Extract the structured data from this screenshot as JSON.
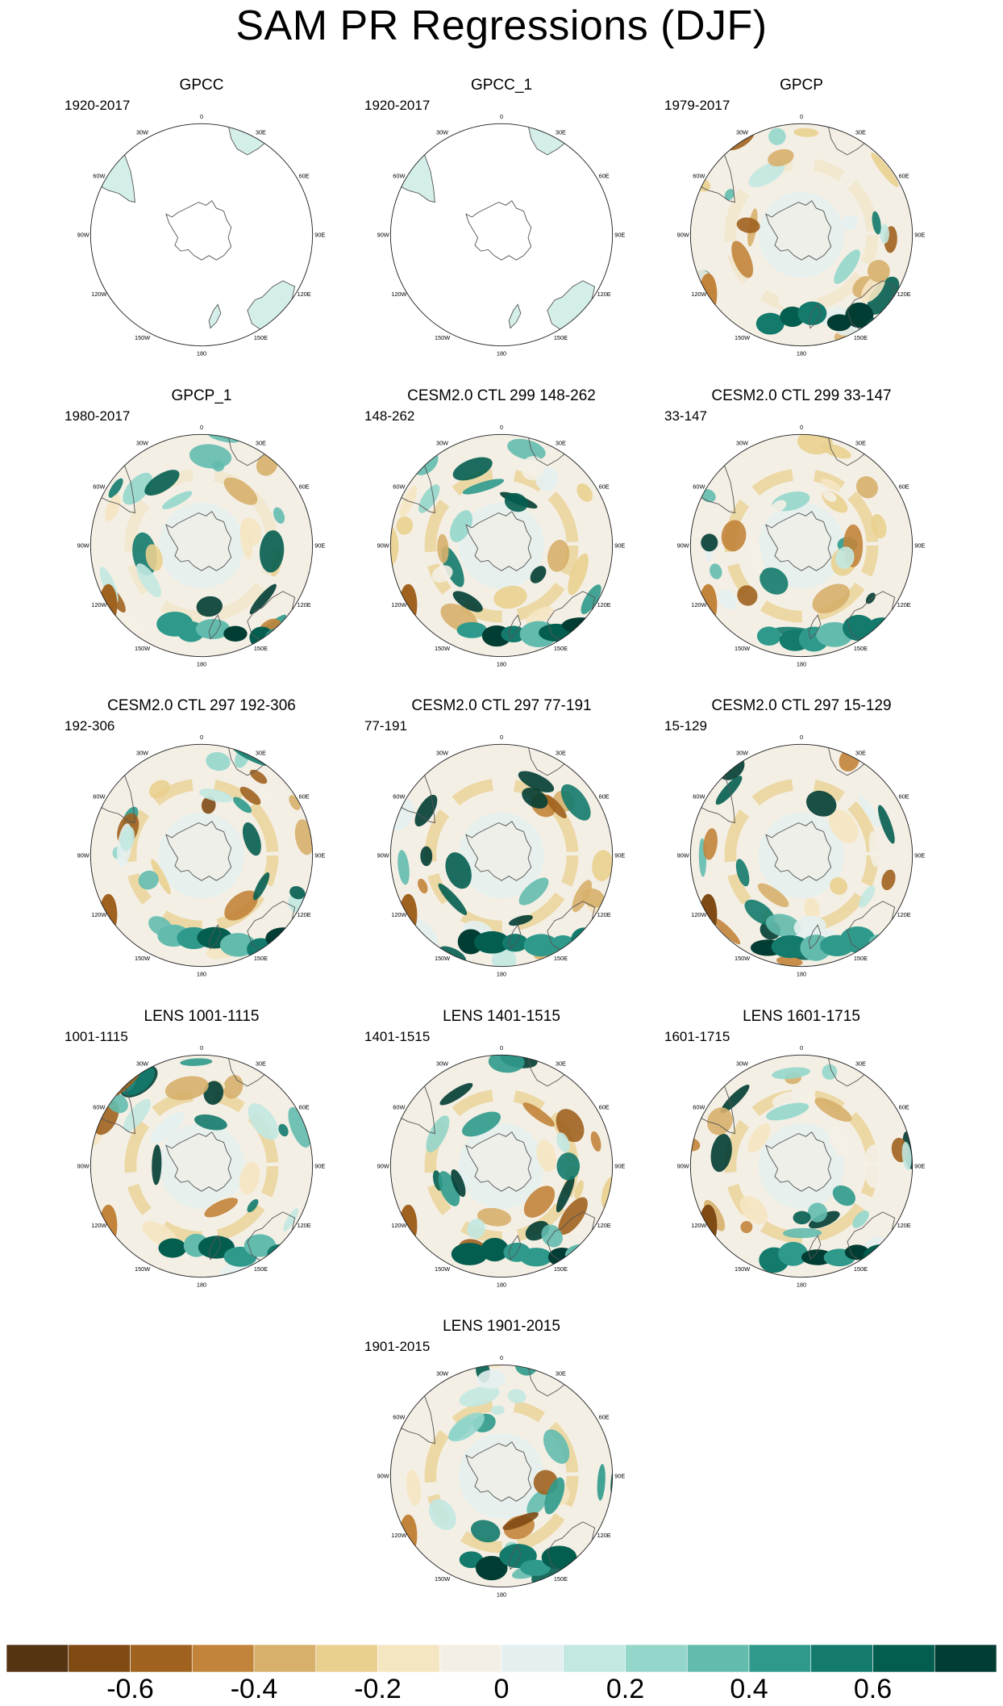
{
  "title": "SAM PR Regressions (DJF)",
  "longitude_labels": [
    "0",
    "30E",
    "60E",
    "90E",
    "120E",
    "150E",
    "180",
    "150W",
    "120W",
    "90W",
    "60W",
    "30W"
  ],
  "panels": [
    {
      "title": "GPCC",
      "period": "1920-2017",
      "land_only": true
    },
    {
      "title": "GPCC_1",
      "period": "1920-2017",
      "land_only": true
    },
    {
      "title": "GPCP",
      "period": "1979-2017",
      "land_only": false
    },
    {
      "title": "GPCP_1",
      "period": "1980-2017",
      "land_only": false
    },
    {
      "title": "CESM2.0 CTL 299 148-262",
      "period": "148-262",
      "land_only": false
    },
    {
      "title": "CESM2.0 CTL 299 33-147",
      "period": "33-147",
      "land_only": false
    },
    {
      "title": "CESM2.0 CTL 297 192-306",
      "period": "192-306",
      "land_only": false
    },
    {
      "title": "CESM2.0 CTL 297 77-191",
      "period": "77-191",
      "land_only": false
    },
    {
      "title": "CESM2.0 CTL 297 15-129",
      "period": "15-129",
      "land_only": false
    },
    {
      "title": "LENS 1001-1115",
      "period": "1001-1115",
      "land_only": false
    },
    {
      "title": "LENS 1401-1515",
      "period": "1401-1515",
      "land_only": false
    },
    {
      "title": "LENS 1601-1715",
      "period": "1601-1715",
      "land_only": false
    },
    {
      "title": "LENS 1901-2015",
      "period": "1901-2015",
      "land_only": false
    }
  ],
  "colorbar": {
    "colors": [
      "#553412",
      "#7f4a14",
      "#a0621f",
      "#c2843a",
      "#d7b06c",
      "#ead08f",
      "#f5e6c2",
      "#f4efe5",
      "#e4f0ef",
      "#c2e8e1",
      "#95d6cb",
      "#63bbae",
      "#2f9a8c",
      "#137a6c",
      "#045e50",
      "#023d33"
    ],
    "labels": [
      "-0.6",
      "-0.4",
      "-0.2",
      "0",
      "0.2",
      "0.4",
      "0.6"
    ],
    "min": -0.8,
    "max": 0.8,
    "step": 0.1
  },
  "colors": {
    "land_outline": "#555555",
    "map_border": "#222222"
  }
}
